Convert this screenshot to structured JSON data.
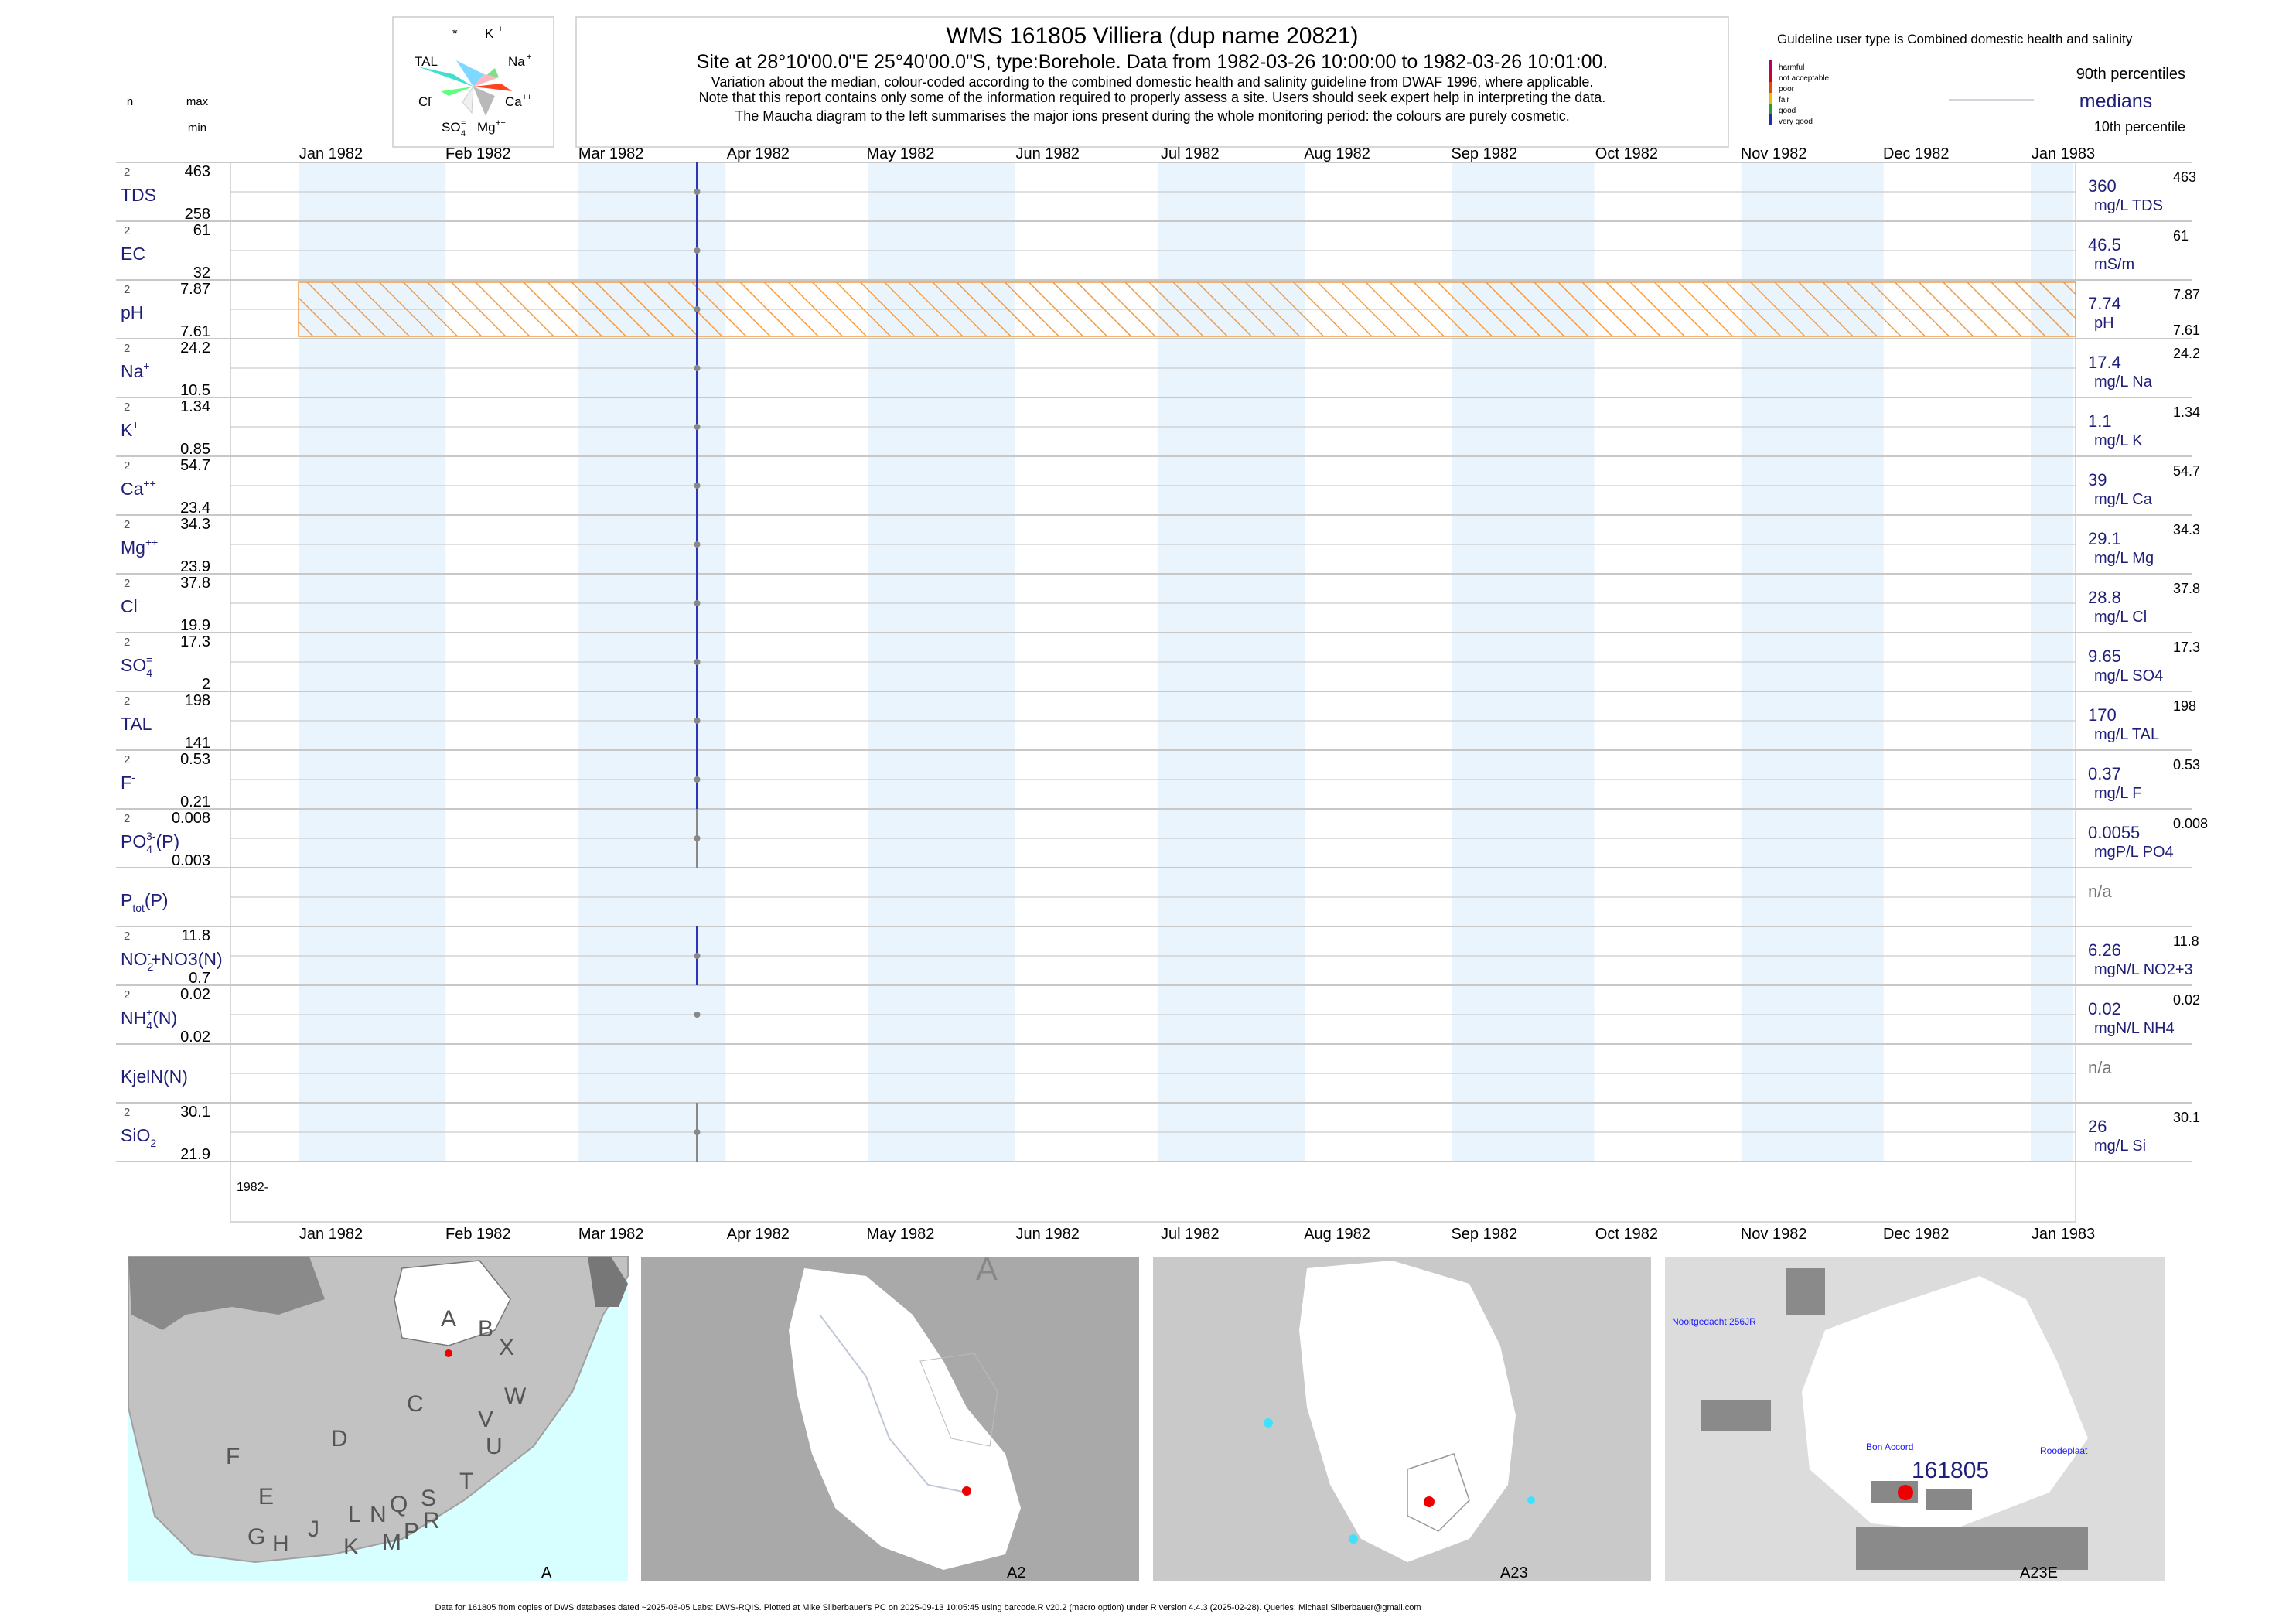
{
  "header": {
    "title": "WMS 161805  Villiera (dup name 20821)",
    "subtitle": "Site at 28°10'00.0\"E 25°40'00.0\"S, type:Borehole.  Data from 1982-03-26 10:00:00 to 1982-03-26 10:01:00.",
    "note1": "Variation about the median,  colour-coded according to the combined domestic health and salinity guideline from DWAF 1996, where applicable.",
    "note2": "Note that this report contains only some of the information required to properly assess a site. Users should seek expert help in interpreting the data.",
    "note3": "The Maucha diagram to the left summarises the major ions present during the whole monitoring period: the colours are purely cosmetic."
  },
  "maucha": {
    "labels": {
      "star": "*",
      "k": "K",
      "na": "Na",
      "ca": "Ca",
      "mg": "Mg",
      "so4": "SO",
      "cl": "Cl",
      "tal": "TAL"
    }
  },
  "columns": {
    "n": "n",
    "max": "max",
    "min": "min"
  },
  "legend": {
    "guideline": "Guideline user type is Combined domestic health and salinity",
    "categories": [
      {
        "label": "harmful",
        "color": "#b0006b"
      },
      {
        "label": "not acceptable",
        "color": "#d0002a"
      },
      {
        "label": "poor",
        "color": "#e84b00"
      },
      {
        "label": "fair",
        "color": "#e8c000"
      },
      {
        "label": "good",
        "color": "#27a02a"
      },
      {
        "label": "very good",
        "color": "#1f2fa8"
      }
    ],
    "p90": "90th percentiles",
    "medians": "medians",
    "p10": "10th percentile"
  },
  "chart_data": {
    "type": "line",
    "x_axis": {
      "range": [
        "1982-01-01",
        "1983-01-01"
      ],
      "ticks": [
        "Jan 1982",
        "Feb 1982",
        "Mar 1982",
        "Apr 1982",
        "May 1982",
        "Jun 1982",
        "Jul 1982",
        "Aug 1982",
        "Sep 1982",
        "Oct 1982",
        "Nov 1982",
        "Dec 1982",
        "Jan 1983"
      ],
      "year_label": "1982-"
    },
    "sample_date": "1982-03-26",
    "series": [
      {
        "name": "TDS",
        "n": "2",
        "max": "463",
        "min": "258",
        "median": "360",
        "unit": "mg/L TDS",
        "pmax": "463",
        "pmin": "",
        "has_data": true
      },
      {
        "name": "EC",
        "n": "2",
        "max": "61",
        "min": "32",
        "median": "46.5",
        "unit": "mS/m",
        "pmax": "61",
        "pmin": "",
        "has_data": true
      },
      {
        "name": "pH",
        "n": "2",
        "max": "7.87",
        "min": "7.61",
        "median": "7.74",
        "unit": "pH",
        "pmax": "7.87",
        "pmin": "7.61",
        "has_data": true
      },
      {
        "name": "Na",
        "sup": "+",
        "n": "2",
        "max": "24.2",
        "min": "10.5",
        "median": "17.4",
        "unit": "mg/L Na",
        "pmax": "24.2",
        "pmin": "",
        "has_data": true
      },
      {
        "name": "K",
        "sup": "+",
        "n": "2",
        "max": "1.34",
        "min": "0.85",
        "median": "1.1",
        "unit": "mg/L K",
        "pmax": "1.34",
        "pmin": "",
        "has_data": true
      },
      {
        "name": "Ca",
        "sup": "++",
        "n": "2",
        "max": "54.7",
        "min": "23.4",
        "median": "39",
        "unit": "mg/L Ca",
        "pmax": "54.7",
        "pmin": "",
        "has_data": true
      },
      {
        "name": "Mg",
        "sup": "++",
        "n": "2",
        "max": "34.3",
        "min": "23.9",
        "median": "29.1",
        "unit": "mg/L Mg",
        "pmax": "34.3",
        "pmin": "",
        "has_data": true
      },
      {
        "name": "Cl",
        "sup": "-",
        "n": "2",
        "max": "37.8",
        "min": "19.9",
        "median": "28.8",
        "unit": "mg/L Cl",
        "pmax": "37.8",
        "pmin": "",
        "has_data": true
      },
      {
        "name": "SO",
        "sub": "4",
        "sup": "=",
        "n": "2",
        "max": "17.3",
        "min": "2",
        "median": "9.65",
        "unit": "mg/L SO4",
        "pmax": "17.3",
        "pmin": "",
        "has_data": true
      },
      {
        "name": "TAL",
        "n": "2",
        "max": "198",
        "min": "141",
        "median": "170",
        "unit": "mg/L TAL",
        "pmax": "198",
        "pmin": "",
        "has_data": true
      },
      {
        "name": "F",
        "sup": "-",
        "n": "2",
        "max": "0.53",
        "min": "0.21",
        "median": "0.37",
        "unit": "mg/L F",
        "pmax": "0.53",
        "pmin": "",
        "has_data": true
      },
      {
        "name": "PO",
        "sub": "4",
        "sup": "3-",
        "suffix": "(P)",
        "n": "2",
        "max": "0.008",
        "min": "0.003",
        "median": "0.0055",
        "unit": "mgP/L PO4",
        "pmax": "0.008",
        "pmin": "",
        "has_data": true
      },
      {
        "name": "P",
        "sub": "tot",
        "suffix": "(P)",
        "n": "",
        "max": "",
        "min": "",
        "median": "n/a",
        "unit": "",
        "pmax": "",
        "pmin": "",
        "has_data": false
      },
      {
        "name": "NO",
        "sub": "2",
        "sup": "-",
        "suffix": "+NO3(N)",
        "n": "2",
        "max": "11.8",
        "min": "0.7",
        "median": "6.26",
        "unit": "mgN/L NO2+3",
        "pmax": "11.8",
        "pmin": "",
        "has_data": true
      },
      {
        "name": "NH",
        "sub": "4",
        "sup": "+",
        "suffix": "(N)",
        "n": "2",
        "max": "0.02",
        "min": "0.02",
        "median": "0.02",
        "unit": "mgN/L NH4",
        "pmax": "0.02",
        "pmin": "",
        "has_data": true
      },
      {
        "name": "KjelN(N)",
        "n": "",
        "max": "",
        "min": "",
        "median": "n/a",
        "unit": "",
        "pmax": "",
        "pmin": "",
        "has_data": false
      },
      {
        "name": "SiO",
        "sub": "2",
        "n": "2",
        "max": "30.1",
        "min": "21.9",
        "median": "26",
        "unit": "mg/L Si",
        "pmax": "30.1",
        "pmin": "",
        "has_data": true
      }
    ]
  },
  "maps": [
    {
      "corner": "A",
      "letters": [
        "A",
        "B",
        "X",
        "W",
        "C",
        "V",
        "U",
        "D",
        "T",
        "F",
        "E",
        "S",
        "R",
        "Q",
        "N",
        "L",
        "J",
        "G",
        "H",
        "K",
        "M",
        "P"
      ]
    },
    {
      "corner": "A2",
      "letters": [
        "A"
      ]
    },
    {
      "corner": "A23",
      "letters": []
    },
    {
      "corner": "A23E",
      "labels": [
        "Nooitgedacht 256JR",
        "Bon Accord",
        "Roodeplaat"
      ],
      "site": "161805"
    }
  ],
  "footer": "Data for 161805 from copies of DWS databases dated ~2025-08-05 Labs: DWS-RQIS. Plotted at Mike Silberbauer's PC on 2025-09-13 10:05:45 using barcode.R v20.2 (macro option) under R version 4.4.3 (2025-02-28). Queries: Michael.Silberbauer@gmail.com"
}
